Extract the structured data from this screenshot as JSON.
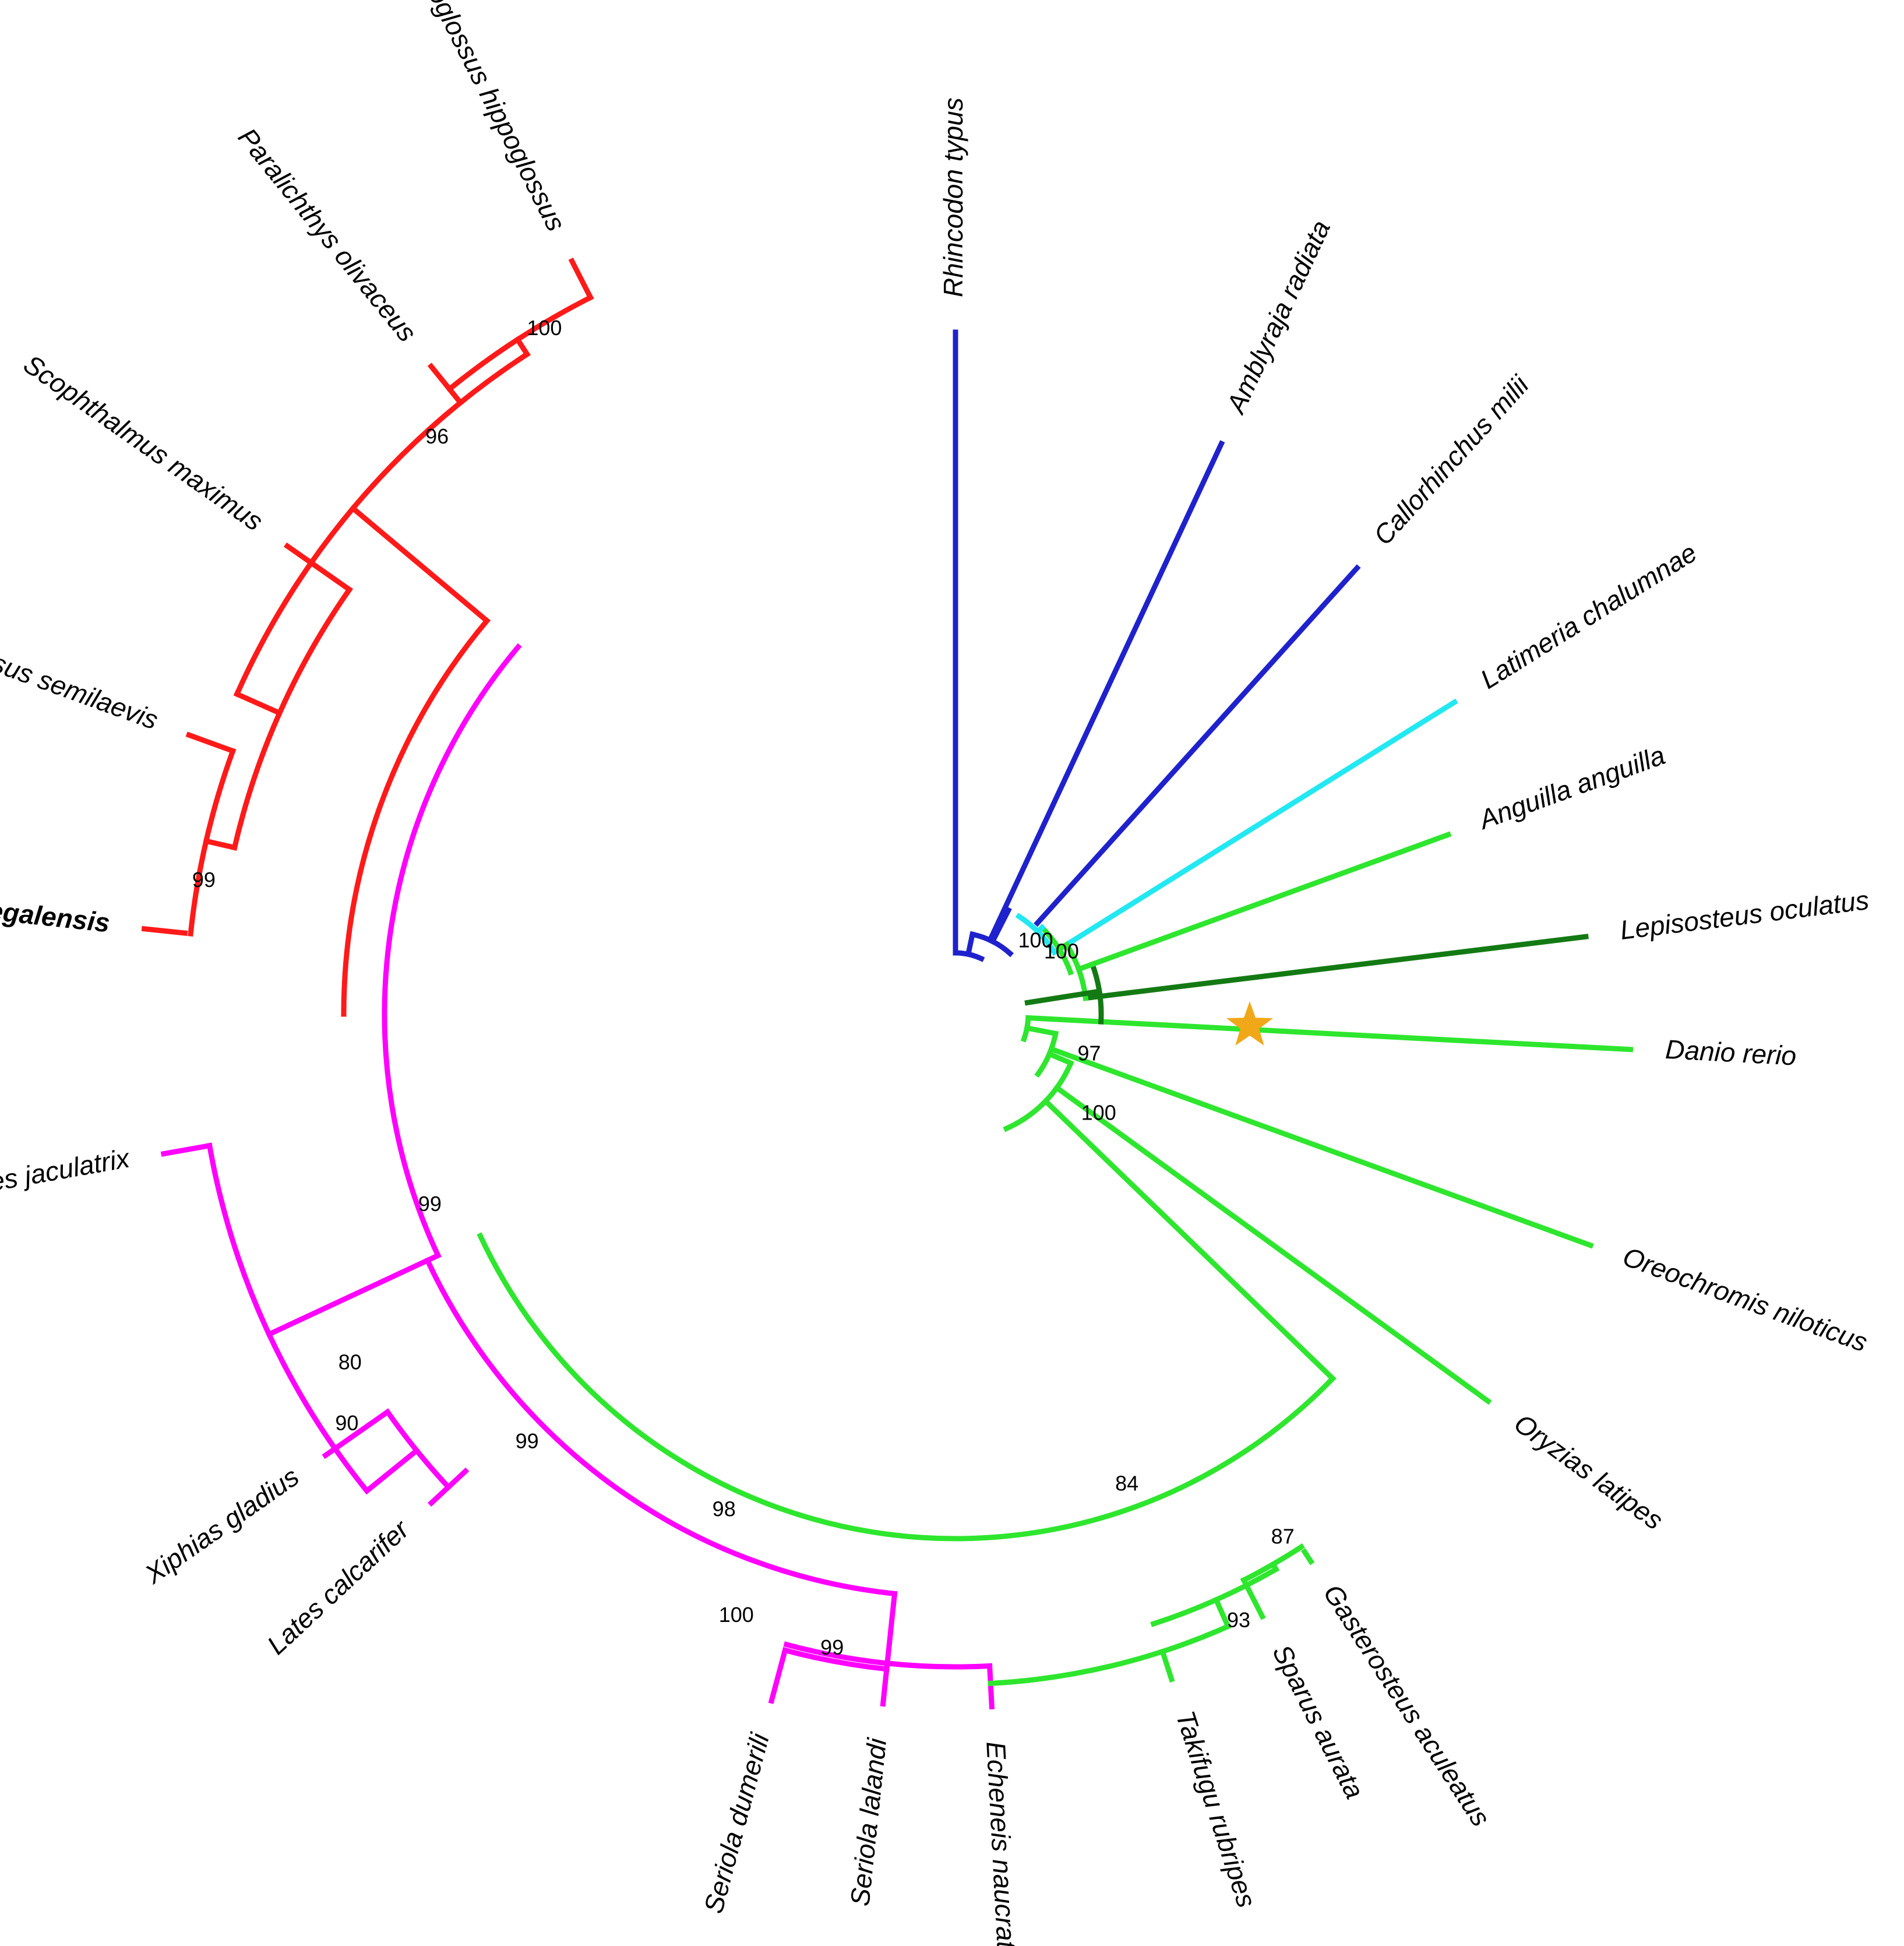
{
  "colors": {
    "blue": "#1f22cc",
    "cyan": "#22e8f2",
    "green": "#2ee62e",
    "dark_green": "#137a13",
    "red": "#ff1a1a",
    "magenta": "#ff00ff",
    "star": "#f0a818"
  },
  "taxa": [
    "Rhincodon typus",
    "Amblyraja radiata",
    "Callorhinchus milii",
    "Latimeria chalumnae",
    "Anguilla anguilla",
    "Lepisosteus oculatus",
    "Danio rerio",
    "Oreochromis niloticus",
    "Oryzias latipes",
    "Gasterosteus aculeatus",
    "Sparus aurata",
    "Takifugu rubripes",
    "Echeneis naucrates",
    "Seriola lalandi",
    "Seriola dumerili",
    "Lates calcarifer",
    "Xiphias gladius",
    "Toxotes jaculatrix",
    "Solea senegalensis",
    "Cynoglossus semilaevis",
    "Scophthalmus maximus",
    "Paralichthys olivaceus",
    "Hippoglossus hippoglossus"
  ],
  "bootstrap": [
    "100",
    "100",
    "97",
    "100",
    "84",
    "98",
    "87",
    "93",
    "99",
    "100",
    "99",
    "80",
    "90",
    "99",
    "96",
    "99",
    "100"
  ],
  "marker": "star-icon"
}
